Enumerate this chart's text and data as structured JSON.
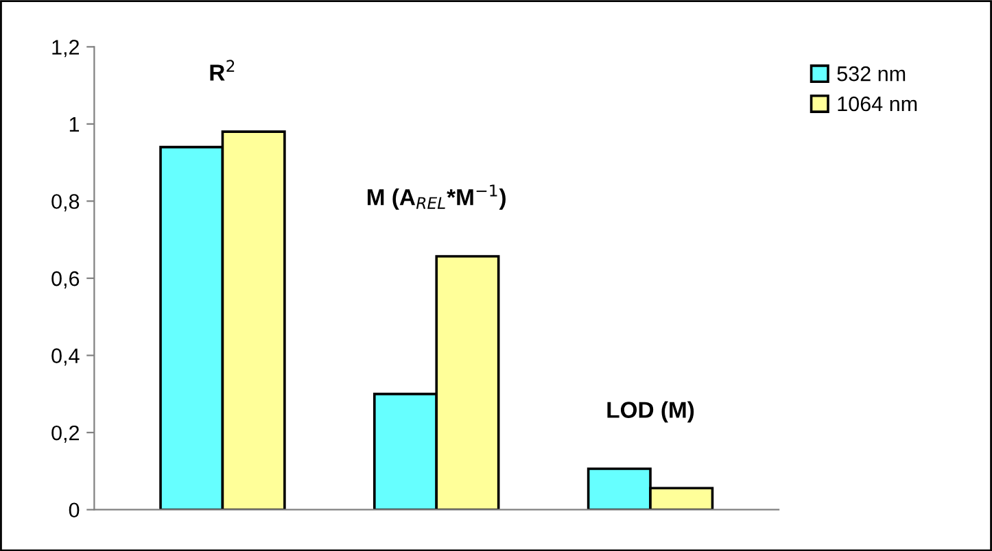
{
  "chart_data": {
    "type": "bar",
    "categories": [
      null,
      null,
      null
    ],
    "series": [
      {
        "name": "532 nm",
        "color": "#66ffff",
        "values": [
          0.94,
          0.3,
          0.106
        ]
      },
      {
        "name": "1064 nm",
        "color": "#ffff99",
        "values": [
          0.98,
          0.657,
          0.056
        ]
      }
    ],
    "annotations": [
      "R$^{2}$",
      "M (A$_{REL}$*M$^{−1}$)",
      "LOD (M)"
    ],
    "ylim": [
      0,
      1.2
    ],
    "yticks": [
      0,
      {
        "value": 0.2,
        "label": "0,2"
      },
      {
        "value": 0.4,
        "label": "0,4"
      },
      {
        "value": 0.6,
        "label": "0,6"
      },
      {
        "value": 0.8,
        "label": "0,8"
      },
      1,
      {
        "value": 1.2,
        "label": "1,2"
      }
    ],
    "legend": "top right",
    "grid": false
  }
}
